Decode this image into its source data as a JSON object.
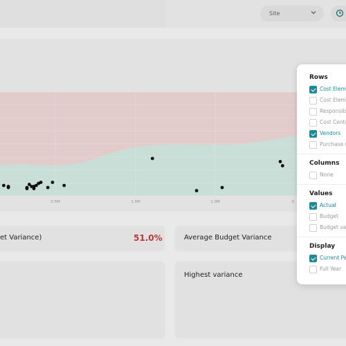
{
  "header": {
    "site_select_value": "Site"
  },
  "chart_data": {
    "type": "scatter",
    "x_tick_labels": [
      "0.5M",
      "1.0M",
      "1.0M",
      "0."
    ],
    "points": [
      [
        0.01,
        0.1
      ],
      [
        0.03,
        0.09
      ],
      [
        0.03,
        0.08
      ],
      [
        0.12,
        0.11
      ],
      [
        0.13,
        0.09
      ],
      [
        0.11,
        0.08
      ],
      [
        0.11,
        0.07
      ],
      [
        0.16,
        0.12
      ],
      [
        0.17,
        0.13
      ],
      [
        0.14,
        0.09
      ],
      [
        0.15,
        0.1
      ],
      [
        0.2,
        0.08
      ],
      [
        0.22,
        0.13
      ],
      [
        0.27,
        0.1
      ],
      [
        0.65,
        0.36
      ],
      [
        0.84,
        0.05
      ],
      [
        0.95,
        0.08
      ],
      [
        1.2,
        0.33
      ],
      [
        1.21,
        0.29
      ],
      [
        0.14,
        0.07
      ]
    ],
    "colors": {
      "upper_band": "#ecd4d4",
      "lower_band": "#d2e8df",
      "points": "#111111"
    }
  },
  "cards": {
    "variance_title": "et Variance)",
    "variance_value": "51.0%",
    "avg_budget_title": "Average Budget Variance",
    "highest_title": "Highest variance"
  },
  "panel": {
    "rows": {
      "title": "Rows",
      "items": [
        {
          "label": "Cost Eleme",
          "checked": true
        },
        {
          "label": "Cost Eleme",
          "checked": false
        },
        {
          "label": "Responsibi",
          "checked": false
        },
        {
          "label": "Cost Cente",
          "checked": false
        },
        {
          "label": "Vendors",
          "checked": true
        },
        {
          "label": "Purchase O",
          "checked": false
        }
      ]
    },
    "columns": {
      "title": "Columns",
      "items": [
        {
          "label": "None",
          "checked": false
        }
      ]
    },
    "values": {
      "title": "Values",
      "items": [
        {
          "label": "Actual",
          "checked": true
        },
        {
          "label": "Budget",
          "checked": false
        },
        {
          "label": "Budget var",
          "checked": false
        }
      ]
    },
    "display": {
      "title": "Display",
      "items": [
        {
          "label": "Current Pe",
          "checked": true
        },
        {
          "label": "Full Year",
          "checked": false
        }
      ]
    }
  }
}
